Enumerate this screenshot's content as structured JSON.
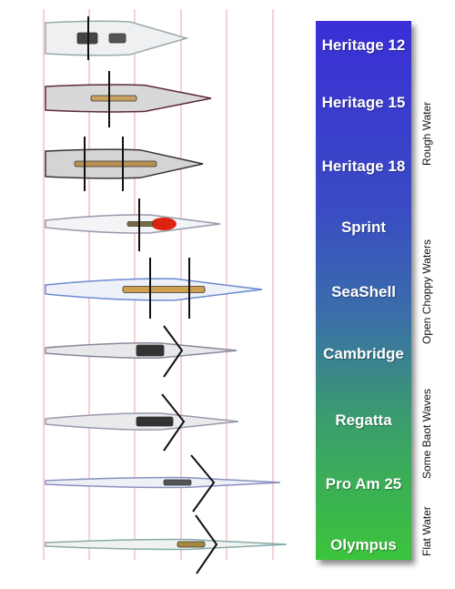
{
  "boats": [
    {
      "name": "Heritage 12"
    },
    {
      "name": "Heritage 15"
    },
    {
      "name": "Heritage 18"
    },
    {
      "name": "Sprint"
    },
    {
      "name": "SeaShell"
    },
    {
      "name": "Cambridge"
    },
    {
      "name": "Regatta"
    },
    {
      "name": "Pro Am 25"
    },
    {
      "name": "Olympus"
    }
  ],
  "conditions": [
    {
      "label": "Rough Water"
    },
    {
      "label": "Open Choppy Waters"
    },
    {
      "label": "Some Baot Waves"
    },
    {
      "label": "Flat Water"
    }
  ],
  "colors": {
    "gridline": "#f0a0a0",
    "scale_top": "#3a2ed6",
    "scale_bottom": "#3cc43c",
    "label_text": "#ffffff"
  }
}
